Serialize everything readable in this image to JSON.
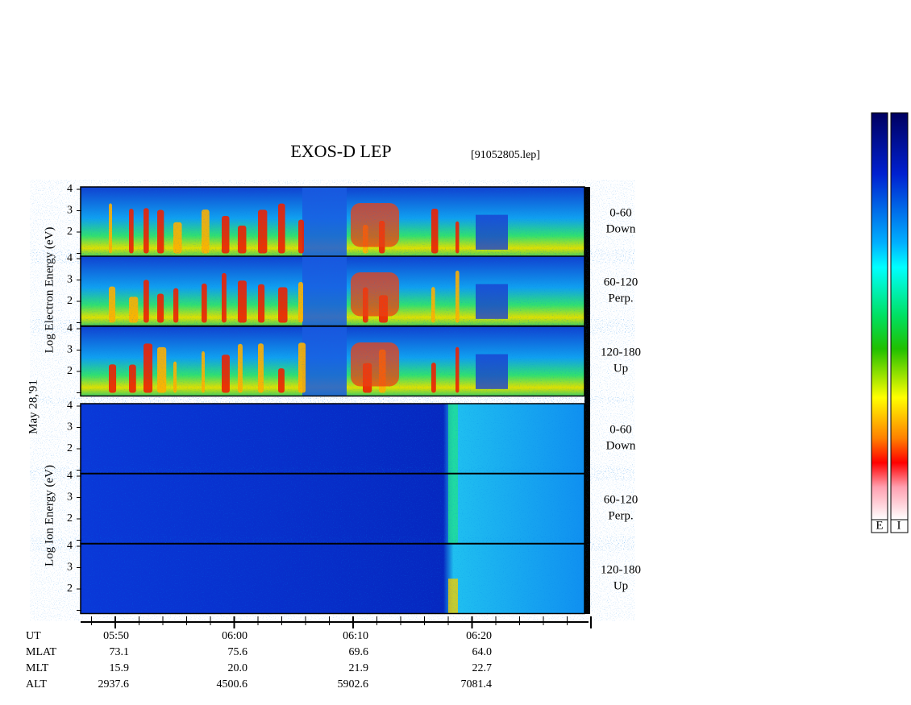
{
  "title": "EXOS-D LEP",
  "file": "[91052805.lep]",
  "date": "May 28,'91",
  "electron": {
    "axis_label": "Log Electron Energy (eV)",
    "panels": [
      {
        "angle": "0-60",
        "direction": "Down"
      },
      {
        "angle": "60-120",
        "direction": "Perp."
      },
      {
        "angle": "120-180",
        "direction": "Up"
      }
    ]
  },
  "ion": {
    "axis_label": "Log Ion Energy (eV)",
    "panels": [
      {
        "angle": "0-60",
        "direction": "Down"
      },
      {
        "angle": "60-120",
        "direction": "Perp."
      },
      {
        "angle": "120-180",
        "direction": "Up"
      }
    ]
  },
  "yticks": [
    4,
    3,
    2
  ],
  "orbit": {
    "rows": [
      [
        "UT",
        "05:50",
        "06:00",
        "06:10",
        "06:20"
      ],
      [
        "MLAT",
        "73.1",
        "75.6",
        "69.6",
        "64.0"
      ],
      [
        "MLT",
        "15.9",
        "20.0",
        "21.9",
        "22.7"
      ],
      [
        "ALT",
        "2937.6",
        "4500.6",
        "5902.6",
        "7081.4"
      ]
    ]
  },
  "colorbar": [
    "E",
    "I"
  ]
}
